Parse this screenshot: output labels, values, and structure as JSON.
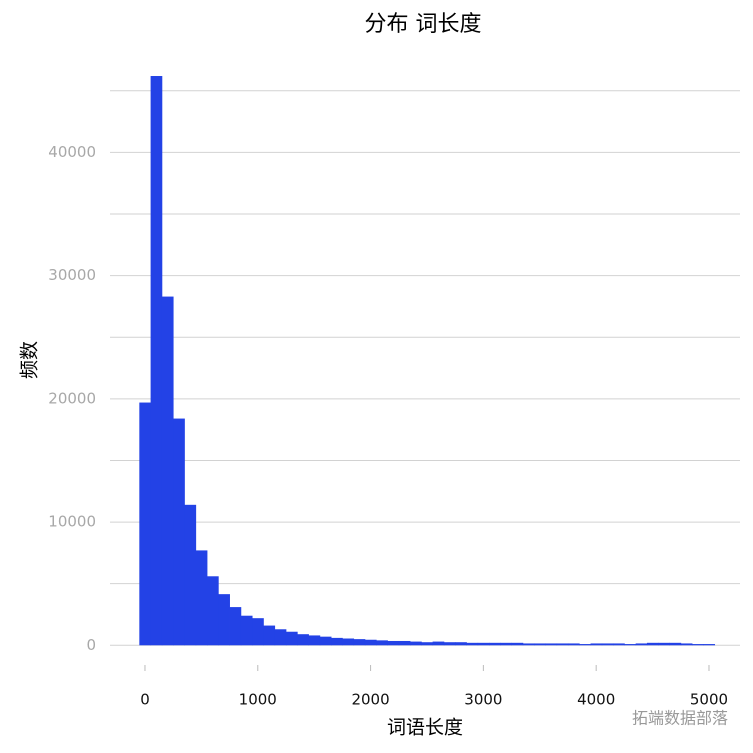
{
  "chart_data": {
    "type": "histogram",
    "title": "分布  词长度",
    "x_label": "词语长度",
    "y_label": "频数",
    "watermark": "拓端数据部落",
    "bins": [
      -50,
      50,
      150,
      250,
      350,
      450,
      550,
      650,
      750,
      850,
      950,
      1050,
      1150,
      1250,
      1350,
      1450,
      1550,
      1650,
      1750,
      1850,
      1950,
      2050,
      2150,
      2250,
      2350,
      2450,
      2550,
      2650,
      2750,
      2850,
      2950,
      3050,
      3150,
      3250,
      3350,
      3450,
      3550,
      3650,
      3750,
      3850,
      3950,
      4050,
      4150,
      4250,
      4350,
      4450,
      4550,
      4650,
      4750,
      4850,
      4950,
      5050
    ],
    "values": [
      19700,
      46200,
      28300,
      18400,
      11400,
      7700,
      5600,
      4150,
      3100,
      2400,
      2200,
      1600,
      1300,
      1100,
      900,
      800,
      700,
      600,
      550,
      500,
      450,
      400,
      350,
      350,
      300,
      250,
      300,
      250,
      250,
      200,
      200,
      200,
      200,
      200,
      150,
      150,
      150,
      150,
      150,
      100,
      150,
      150,
      150,
      100,
      150,
      200,
      200,
      200,
      150,
      100,
      100
    ],
    "color": "#2342e6",
    "xlim": [
      -310,
      5275
    ],
    "xticks": [
      0,
      1000,
      2000,
      3000,
      4000,
      5000
    ],
    "ylim": [
      -1600,
      47500
    ],
    "yticks": [
      0,
      10000,
      20000,
      30000,
      40000
    ],
    "minor_yticks": [
      5000,
      15000,
      25000,
      35000,
      45000
    ],
    "grid": true
  }
}
